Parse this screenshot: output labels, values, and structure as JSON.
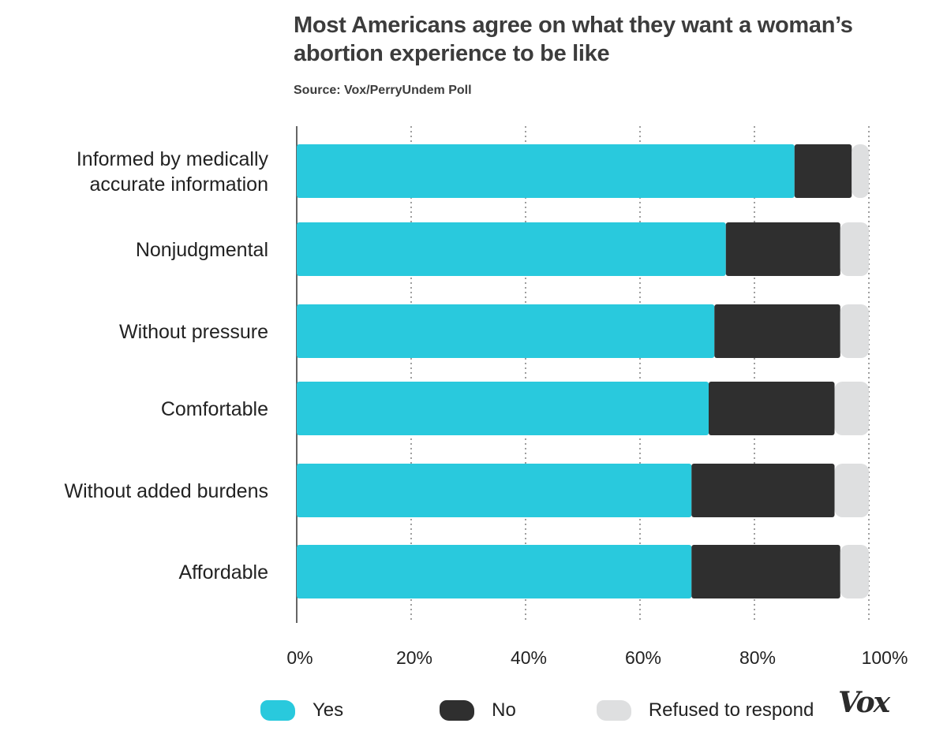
{
  "title": "Most Americans agree on what they want a woman’s abortion experience to be like",
  "source": "Source: Vox/PerryUndem Poll",
  "logo": "Vox",
  "colors": {
    "yes": "#29c9dd",
    "no": "#2f2f2f",
    "refused": "#dedfe0",
    "grid": "#6b6b6b",
    "axis": "#333333"
  },
  "legend": {
    "yes": "Yes",
    "no": "No",
    "refused": "Refused to respond"
  },
  "chart_data": {
    "type": "bar",
    "orientation": "horizontal",
    "stacked": true,
    "title": "Most Americans agree on what they want a woman’s abortion experience to be like",
    "subtitle": "Source: Vox/PerryUndem Poll",
    "xlim": [
      0,
      100
    ],
    "x_ticks": [
      0,
      20,
      40,
      60,
      80,
      100
    ],
    "x_tick_labels": [
      "0%",
      "20%",
      "40%",
      "60%",
      "80%",
      "100%"
    ],
    "grid": "vertical dotted",
    "legend_position": "bottom",
    "categories": [
      "Informed by medically accurate information",
      "Nonjudgmental",
      "Without pressure",
      "Comfortable",
      "Without added burdens",
      "Affordable"
    ],
    "series": [
      {
        "name": "Yes",
        "values": [
          87,
          75,
          73,
          72,
          69,
          69
        ]
      },
      {
        "name": "No",
        "values": [
          10,
          20,
          22,
          22,
          25,
          26
        ]
      },
      {
        "name": "Refused to respond",
        "values": [
          3,
          5,
          5,
          6,
          6,
          5
        ]
      }
    ]
  }
}
